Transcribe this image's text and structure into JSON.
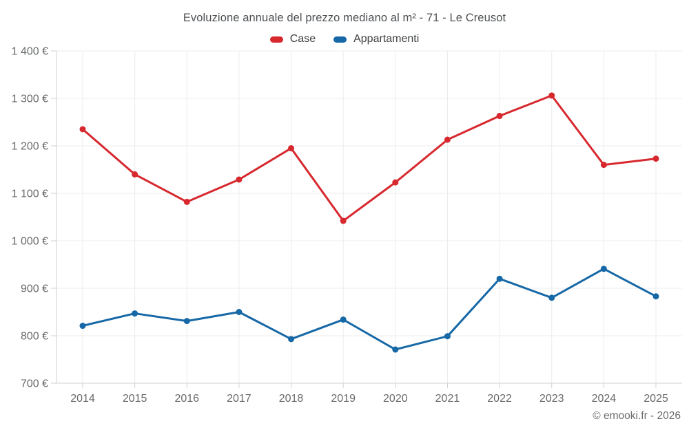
{
  "title": "Evoluzione annuale del prezzo mediano al m² - 71 - Le Creusot",
  "watermark": "© emooki.fr - 2026",
  "chart_data": {
    "type": "line",
    "title": "Evoluzione annuale del prezzo mediano al m² - 71 - Le Creusot",
    "x": [
      2014,
      2015,
      2016,
      2017,
      2018,
      2019,
      2020,
      2021,
      2022,
      2023,
      2024,
      2025
    ],
    "xticks": [
      "2014",
      "2015",
      "2016",
      "2017",
      "2018",
      "2019",
      "2020",
      "2021",
      "2022",
      "2023",
      "2024",
      "2025"
    ],
    "ytick_values": [
      700,
      800,
      900,
      1000,
      1100,
      1200,
      1300,
      1400
    ],
    "ytick_labels": [
      "700 €",
      "800 €",
      "900 €",
      "1 000 €",
      "1 100 €",
      "1 200 €",
      "1 300 €",
      "1 400 €"
    ],
    "ylim": [
      700,
      1400
    ],
    "ylabel_suffix": "€",
    "grid": true,
    "legend_position": "top",
    "series": [
      {
        "name": "Case",
        "color": "#d7282e",
        "values": [
          1235,
          1140,
          1082,
          1129,
          1195,
          1042,
          1123,
          1213,
          1263,
          1306,
          1160,
          1173
        ]
      },
      {
        "name": "Appartamenti",
        "color": "#1768a6",
        "values": [
          821,
          847,
          831,
          850,
          793,
          834,
          771,
          799,
          920,
          880,
          941,
          883
        ]
      }
    ],
    "background": "#ffffff",
    "grid_color": "#ececec",
    "axis_color": "#cfd2d4",
    "label_color": "#67696b"
  }
}
